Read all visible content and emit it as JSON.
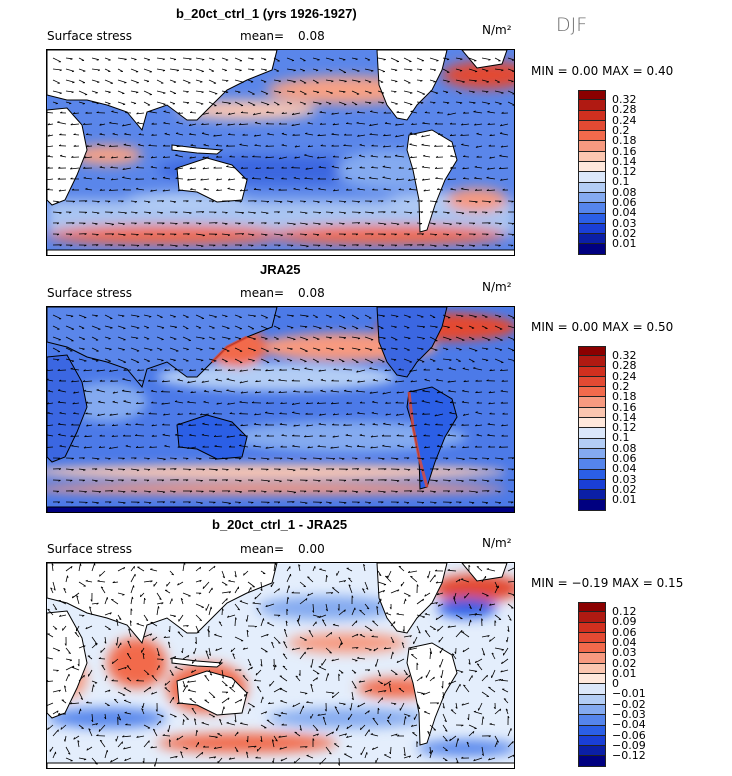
{
  "season": "DJF",
  "panels": [
    {
      "title": "b_20ct_ctrl_1 (yrs 1926-1927)",
      "variable": "Surface stress",
      "mean_label": "mean=",
      "mean_value": "0.08",
      "units": "N/m²",
      "minmax": "MIN =   0.00 MAX =   0.40",
      "colorbar_labels": [
        "0.32",
        "0.28",
        "0.24",
        "0.2",
        "0.18",
        "0.16",
        "0.14",
        "0.12",
        "0.1",
        "0.08",
        "0.06",
        "0.04",
        "0.03",
        "0.02",
        "0.01"
      ],
      "colors": [
        "#8b0000",
        "#b01a12",
        "#d1301f",
        "#e34a33",
        "#f26a4c",
        "#f79a80",
        "#fbc6b0",
        "#ffe8dc",
        "#dbe7fa",
        "#b3cdf5",
        "#84aaf0",
        "#5585ec",
        "#2b5fe6",
        "#1a3fd6",
        "#0b1fa6",
        "#000080"
      ]
    },
    {
      "title": "JRA25",
      "variable": "Surface stress",
      "mean_label": "mean=",
      "mean_value": "0.08",
      "units": "N/m²",
      "minmax": "MIN =   0.00 MAX =   0.50",
      "colorbar_labels": [
        "0.32",
        "0.28",
        "0.24",
        "0.2",
        "0.18",
        "0.16",
        "0.14",
        "0.12",
        "0.1",
        "0.08",
        "0.06",
        "0.04",
        "0.03",
        "0.02",
        "0.01"
      ],
      "colors": [
        "#8b0000",
        "#b01a12",
        "#d1301f",
        "#e34a33",
        "#f26a4c",
        "#f79a80",
        "#fbc6b0",
        "#ffe8dc",
        "#dbe7fa",
        "#b3cdf5",
        "#84aaf0",
        "#5585ec",
        "#2b5fe6",
        "#1a3fd6",
        "#0b1fa6",
        "#000080"
      ]
    },
    {
      "title": "b_20ct_ctrl_1 - JRA25",
      "variable": "Surface stress",
      "mean_label": "mean=",
      "mean_value": "0.00",
      "units": "N/m²",
      "minmax": "MIN =  −0.19 MAX =   0.15",
      "colorbar_labels": [
        "0.12",
        "0.09",
        "0.06",
        "0.04",
        "0.03",
        "0.02",
        "0.01",
        "0",
        "−0.01",
        "−0.02",
        "−0.03",
        "−0.04",
        "−0.06",
        "−0.09",
        "−0.12"
      ],
      "colors": [
        "#8b0000",
        "#b01a12",
        "#d1301f",
        "#e34a33",
        "#f26a4c",
        "#f79a80",
        "#fbc6b0",
        "#ffe8dc",
        "#dbe7fa",
        "#b3cdf5",
        "#84aaf0",
        "#5585ec",
        "#2b5fe6",
        "#1a3fd6",
        "#0b1fa6",
        "#000080"
      ]
    }
  ]
}
